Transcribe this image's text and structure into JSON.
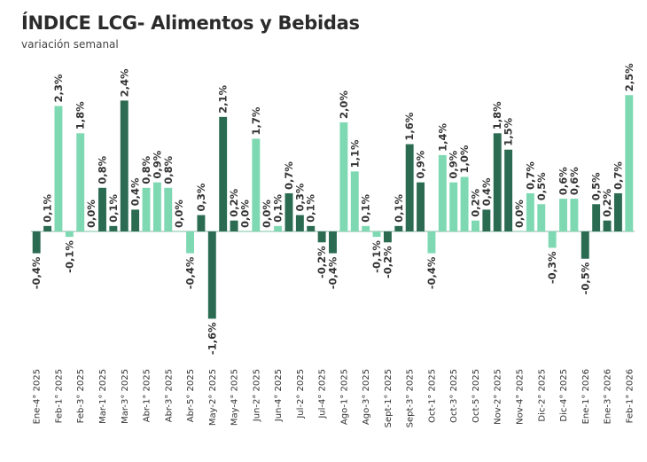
{
  "header": {
    "title": "ÍNDICE LCG- Alimentos y Bebidas",
    "subtitle": "variación semanal"
  },
  "colors": {
    "light": "#7ed9b3",
    "dark": "#2a6b52",
    "zero_line": "#8ab8a6"
  },
  "chart_data": {
    "type": "bar",
    "title": "ÍNDICE LCG- Alimentos y Bebidas",
    "subtitle": "variación semanal",
    "xlabel": "",
    "ylabel": "",
    "ylim": [
      -1.7,
      2.6
    ],
    "grid": false,
    "categories": [
      "Ene-4° 2025",
      "",
      "Feb-1° 2025",
      "",
      "Feb-3° 2025",
      "",
      "Mar-1° 2025",
      "",
      "Mar-3° 2025",
      "",
      "Abr-1° 2025",
      "",
      "Abr-3° 2025",
      "",
      "Abr-5° 2025",
      "",
      "May-2° 2025",
      "",
      "May-4° 2025",
      "",
      "Jun-2° 2025",
      "",
      "Jun-4° 2025",
      "",
      "Jul-2° 2025",
      "",
      "Jul-4° 2025",
      "",
      "Ago-1° 2025",
      "",
      "Ago-3° 2025",
      "",
      "Sept-1° 2025",
      "",
      "Sept-3° 2025",
      "",
      "Oct-1° 2025",
      "",
      "Oct-3° 2025",
      "",
      "Oct-5° 2025",
      "",
      "Nov-2° 2025",
      "",
      "Nov-4° 2025",
      "",
      "Dic-2° 2025",
      "",
      "Dic-4° 2025",
      "",
      "Ene-1° 2026",
      "",
      "Ene-3° 2026",
      "",
      "Feb-1° 2026"
    ],
    "values": [
      -0.4,
      0.1,
      2.3,
      -0.1,
      1.8,
      0.0,
      0.8,
      0.1,
      2.4,
      0.4,
      0.8,
      0.9,
      0.8,
      0.0,
      -0.4,
      0.3,
      -1.6,
      2.1,
      0.2,
      0.0,
      1.7,
      0.0,
      0.1,
      0.7,
      0.3,
      0.1,
      -0.2,
      -0.4,
      2.0,
      1.1,
      0.1,
      -0.1,
      -0.2,
      0.1,
      1.6,
      0.9,
      -0.4,
      1.4,
      0.9,
      1.0,
      0.2,
      0.4,
      1.8,
      1.5,
      0.0,
      0.7,
      0.5,
      -0.3,
      0.6,
      0.6,
      -0.5,
      0.5,
      0.2,
      0.7,
      2.5
    ],
    "labels": [
      "-0,4%",
      "0,1%",
      "2,3%",
      "-0,1%",
      "1,8%",
      "0,0%",
      "0,8%",
      "0,1%",
      "2,4%",
      "0,4%",
      "0,8%",
      "0,9%",
      "0,8%",
      "0,0%",
      "-0,4%",
      "0,3%",
      "-1,6%",
      "2,1%",
      "0,2%",
      "0,0%",
      "1,7%",
      "0,0%",
      "0,1%",
      "0,7%",
      "0,3%",
      "0,1%",
      "-0,2%",
      "-0,4%",
      "2,0%",
      "1,1%",
      "0,1%",
      "-0,1%",
      "-0,2%",
      "0,1%",
      "1,6%",
      "0,9%",
      "-0,4%",
      "1,4%",
      "0,9%",
      "1,0%",
      "0,2%",
      "0,4%",
      "1,8%",
      "1,5%",
      "0,0%",
      "0,7%",
      "0,5%",
      "-0,3%",
      "0,6%",
      "0,6%",
      "-0,5%",
      "0,5%",
      "0,2%",
      "0,7%",
      "2,5%"
    ],
    "shade": [
      "d",
      "d",
      "l",
      "l",
      "l",
      "l",
      "d",
      "d",
      "d",
      "d",
      "l",
      "l",
      "l",
      "l",
      "l",
      "d",
      "d",
      "d",
      "d",
      "l",
      "l",
      "l",
      "l",
      "d",
      "d",
      "d",
      "d",
      "d",
      "l",
      "l",
      "l",
      "l",
      "d",
      "d",
      "d",
      "d",
      "l",
      "l",
      "l",
      "l",
      "l",
      "d",
      "d",
      "d",
      "l",
      "l",
      "l",
      "l",
      "l",
      "l",
      "d",
      "d",
      "d",
      "d",
      "l"
    ]
  }
}
